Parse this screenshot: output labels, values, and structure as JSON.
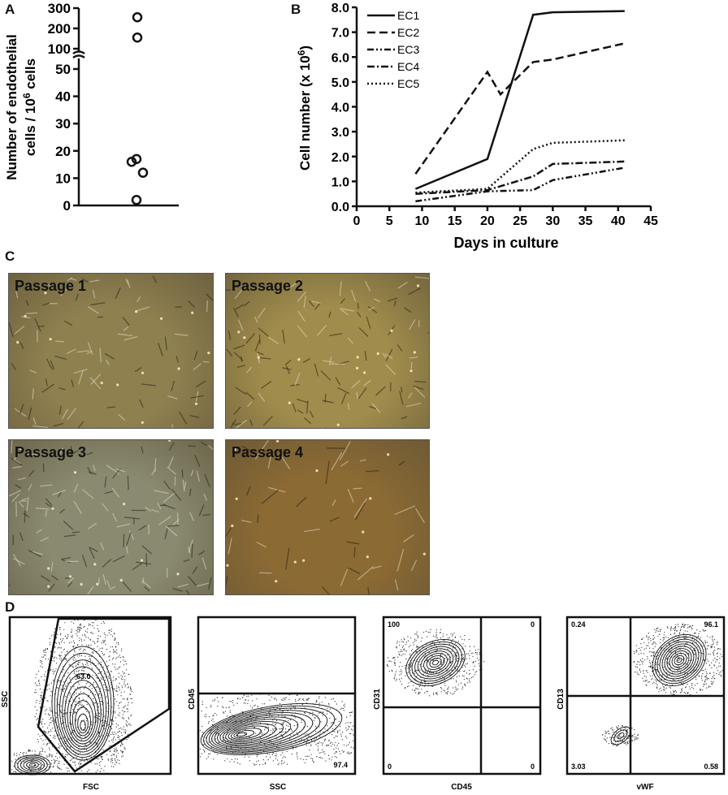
{
  "panels": {
    "a": "A",
    "b": "B",
    "c": "C",
    "d": "D"
  },
  "chart_data": [
    {
      "type": "scatter",
      "panel": "A",
      "ylabel_line1": "Number of endothelial",
      "ylabel_line2_prefix": "cells / 10",
      "ylabel_sup": "6",
      "ylabel_line2_suffix": " cells",
      "yticks_lower": [
        "0",
        "10",
        "20",
        "30",
        "40",
        "50"
      ],
      "yticks_upper": [
        "100",
        "200",
        "300"
      ],
      "ylim_lower": [
        0,
        50
      ],
      "ylim_upper": [
        100,
        300
      ],
      "axis_break": true,
      "values": [
        255,
        155,
        17,
        16,
        12,
        2
      ]
    },
    {
      "type": "line",
      "panel": "B",
      "xlabel": "Days in culture",
      "ylabel_prefix": "Cell number (x 10",
      "ylabel_sup": "6",
      "ylabel_suffix": ")",
      "xlim": [
        0,
        45
      ],
      "ylim": [
        0,
        8
      ],
      "xticks": [
        "0",
        "5",
        "10",
        "15",
        "20",
        "25",
        "30",
        "35",
        "40",
        "45"
      ],
      "yticks": [
        "0.0",
        "1.0",
        "2.0",
        "3.0",
        "4.0",
        "5.0",
        "6.0",
        "7.0",
        "8.0"
      ],
      "legend_position": "top-left",
      "series": [
        {
          "name": "EC1",
          "style": "solid",
          "x": [
            9,
            20,
            27,
            30,
            41
          ],
          "values": [
            0.7,
            1.9,
            7.7,
            7.8,
            7.85
          ]
        },
        {
          "name": "EC2",
          "style": "dashed",
          "x": [
            9,
            20,
            22,
            27,
            30,
            41
          ],
          "values": [
            1.3,
            5.4,
            4.5,
            5.8,
            5.9,
            6.55
          ]
        },
        {
          "name": "EC3",
          "style": "dash-dot-dot",
          "x": [
            9,
            20,
            27,
            30,
            41
          ],
          "values": [
            0.2,
            0.6,
            0.65,
            1.05,
            1.55
          ]
        },
        {
          "name": "EC4",
          "style": "dash-dot",
          "x": [
            9,
            20,
            27,
            30,
            41
          ],
          "values": [
            0.5,
            0.65,
            1.2,
            1.7,
            1.8
          ]
        },
        {
          "name": "EC5",
          "style": "dotted",
          "x": [
            9,
            20,
            27,
            30,
            41
          ],
          "values": [
            0.55,
            0.7,
            2.3,
            2.55,
            2.65
          ]
        }
      ]
    }
  ],
  "micrographs": [
    {
      "label": "Passage 1",
      "bg": "#8f8050"
    },
    {
      "label": "Passage 2",
      "bg": "#a08c4c"
    },
    {
      "label": "Passage 3",
      "bg": "#8a8a70"
    },
    {
      "label": "Passage 4",
      "bg": "#8c6a34"
    }
  ],
  "flow_plots": [
    {
      "xlabel": "FSC",
      "ylabel": "SSC",
      "gate_value": "63.0"
    },
    {
      "xlabel": "SSC",
      "ylabel": "CD45",
      "gate_value": "97.4"
    },
    {
      "xlabel": "CD45",
      "ylabel": "CD31",
      "q_ul": "100",
      "q_ur": "0",
      "q_ll": "0",
      "q_lr": "0"
    },
    {
      "xlabel": "vWF",
      "ylabel": "CD13",
      "q_ul": "0.24",
      "q_ur": "96.1",
      "q_ll": "3.03",
      "q_lr": "0.58"
    }
  ]
}
